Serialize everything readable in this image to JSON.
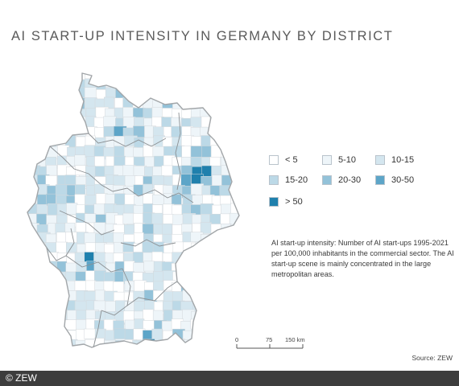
{
  "title": "AI START-UP INTENSITY IN GERMANY BY DISTRICT",
  "legend": {
    "items": [
      {
        "label": "< 5",
        "color": "#ffffff"
      },
      {
        "label": "5-10",
        "color": "#eef5f9"
      },
      {
        "label": "10-15",
        "color": "#d4e6ef"
      },
      {
        "label": "15-20",
        "color": "#bcd9e7"
      },
      {
        "label": "20-30",
        "color": "#93c2d9"
      },
      {
        "label": "30-50",
        "color": "#5da5c8"
      },
      {
        "label": "> 50",
        "color": "#1f80ad"
      }
    ]
  },
  "description": "AI start-up intensity: Number of AI start-ups 1995-2021 per 100,000 inhabitants in the commercial sector. The AI start-up scene is mainly concentrated in the large metropolitan areas.",
  "scale": {
    "ticks": [
      "0",
      "75",
      "150 km"
    ]
  },
  "source": "Source: ZEW",
  "footer": {
    "copyright": "© ZEW"
  },
  "colors": {
    "border": "#bfc4c8",
    "state_border": "#8c9093",
    "outline": "#a2a6a9"
  }
}
